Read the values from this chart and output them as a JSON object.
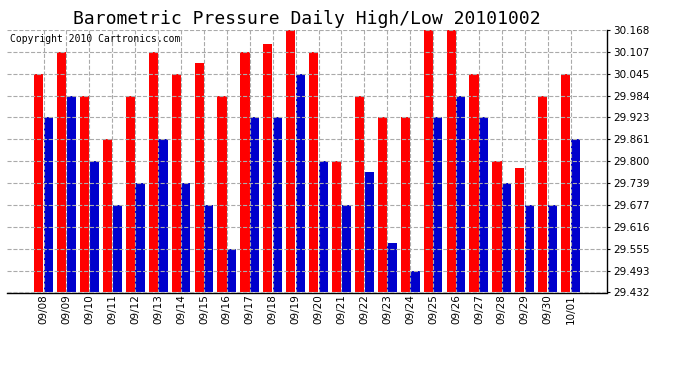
{
  "title": "Barometric Pressure Daily High/Low 20101002",
  "copyright": "Copyright 2010 Cartronics.com",
  "background_color": "#ffffff",
  "plot_background_color": "#ffffff",
  "grid_color": "#aaaaaa",
  "bar_color_high": "#ff0000",
  "bar_color_low": "#0000cc",
  "dates": [
    "09/08",
    "09/09",
    "09/10",
    "09/11",
    "09/12",
    "09/13",
    "09/14",
    "09/15",
    "09/16",
    "09/17",
    "09/18",
    "09/19",
    "09/20",
    "09/21",
    "09/22",
    "09/23",
    "09/24",
    "09/25",
    "09/26",
    "09/27",
    "09/28",
    "09/29",
    "09/30",
    "10/01"
  ],
  "highs": [
    30.045,
    30.107,
    29.984,
    29.861,
    29.984,
    30.107,
    30.045,
    30.075,
    29.984,
    30.107,
    30.13,
    30.168,
    30.107,
    29.8,
    29.984,
    29.923,
    29.923,
    30.168,
    30.168,
    30.045,
    29.8,
    29.78,
    29.984,
    30.045
  ],
  "lows": [
    29.923,
    29.984,
    29.8,
    29.677,
    29.739,
    29.861,
    29.739,
    29.677,
    29.555,
    29.923,
    29.923,
    30.045,
    29.8,
    29.677,
    29.77,
    29.57,
    29.493,
    29.923,
    29.984,
    29.923,
    29.739,
    29.677,
    29.677,
    29.861
  ],
  "yticks": [
    29.432,
    29.493,
    29.555,
    29.616,
    29.677,
    29.739,
    29.8,
    29.861,
    29.923,
    29.984,
    30.045,
    30.107,
    30.168
  ],
  "ymin": 29.432,
  "ymax": 30.168,
  "title_fontsize": 13,
  "copyright_fontsize": 7,
  "tick_fontsize": 7.5,
  "bar_width": 0.4,
  "bar_gap": 0.02
}
